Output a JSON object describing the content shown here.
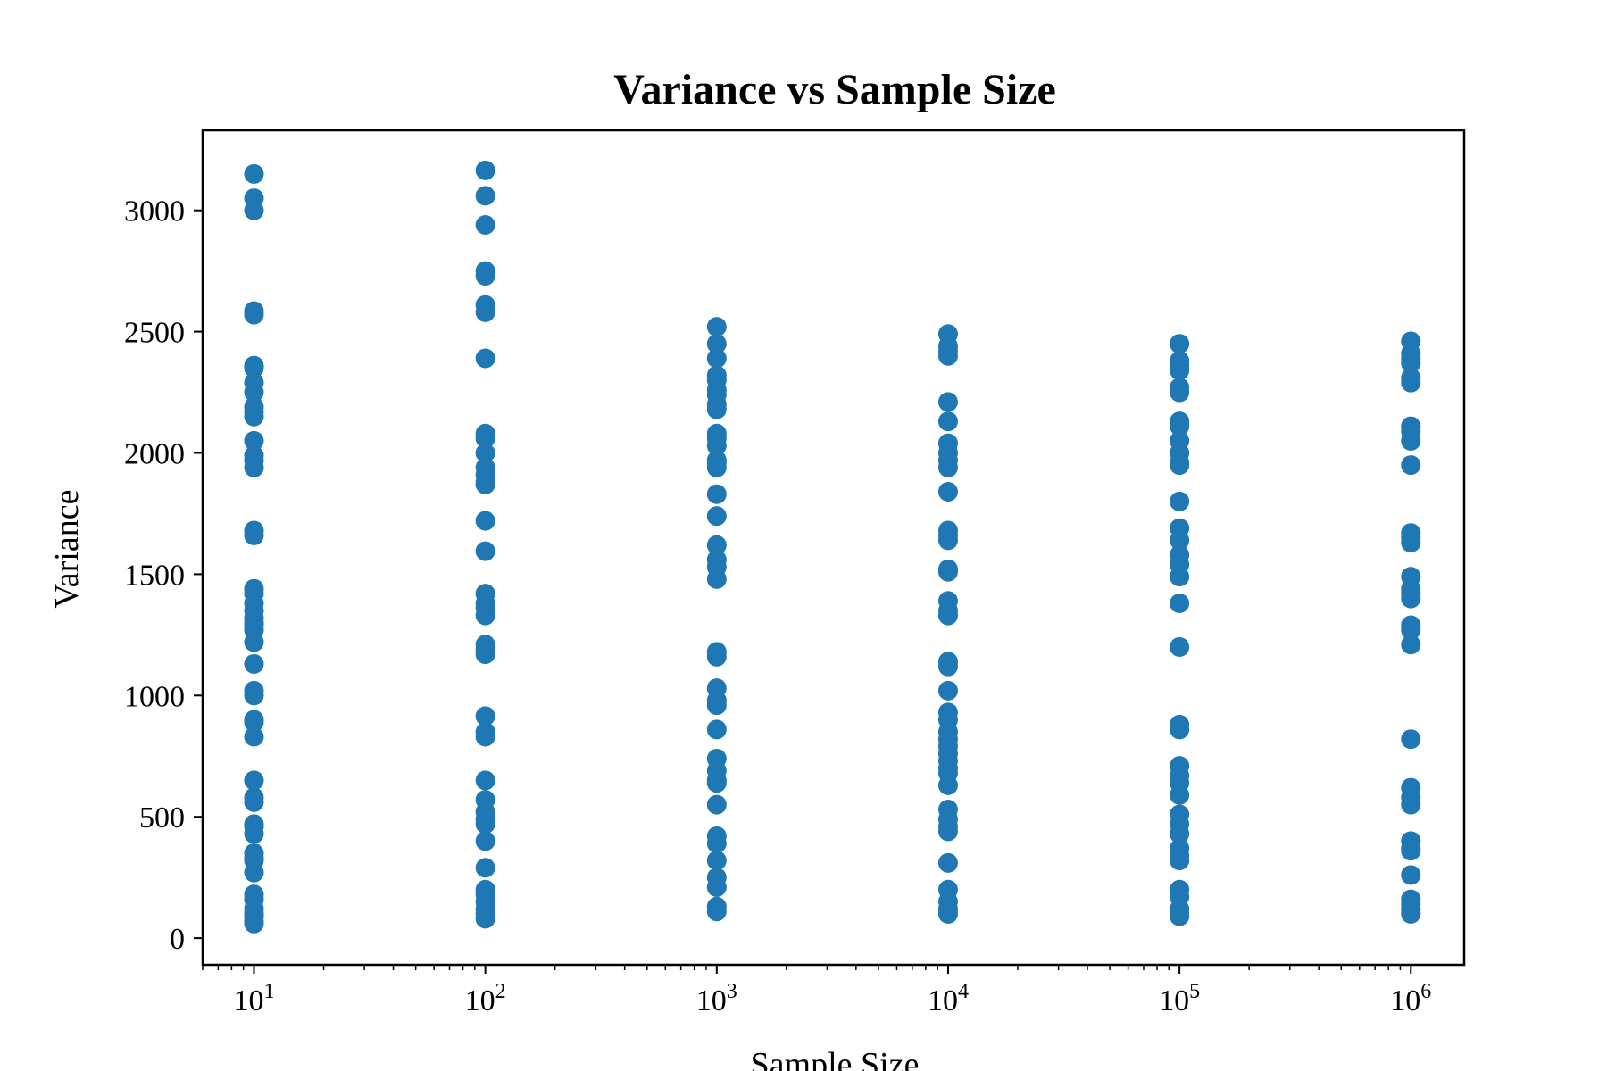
{
  "chart_data": {
    "type": "scatter",
    "title": "Variance vs Sample Size",
    "xlabel": "Sample Size",
    "ylabel": "Variance",
    "x_scale": "log",
    "xlim": [
      6,
      1700000
    ],
    "ylim": [
      -110,
      3330
    ],
    "grid": false,
    "legend": "none",
    "marker_color": "#1f77b4",
    "x_ticks": [
      {
        "value": 10,
        "base": "10",
        "exp": "1"
      },
      {
        "value": 100,
        "base": "10",
        "exp": "2"
      },
      {
        "value": 1000,
        "base": "10",
        "exp": "3"
      },
      {
        "value": 10000,
        "base": "10",
        "exp": "4"
      },
      {
        "value": 100000,
        "base": "10",
        "exp": "5"
      },
      {
        "value": 1000000,
        "base": "10",
        "exp": "6"
      }
    ],
    "y_ticks": [
      0,
      500,
      1000,
      1500,
      2000,
      2500,
      3000
    ],
    "series": [
      {
        "x": 10,
        "values": [
          3150,
          3050,
          3000,
          2585,
          2570,
          2360,
          2350,
          2290,
          2250,
          2190,
          2170,
          2150,
          2050,
          1990,
          1970,
          1940,
          1680,
          1660,
          1440,
          1420,
          1380,
          1350,
          1320,
          1300,
          1290,
          1270,
          1220,
          1130,
          1020,
          1000,
          900,
          890,
          830,
          650,
          580,
          560,
          470,
          460,
          430,
          350,
          330,
          320,
          270,
          180,
          160,
          120,
          100,
          90,
          70,
          60
        ]
      },
      {
        "x": 100,
        "values": [
          3165,
          3060,
          2940,
          2750,
          2730,
          2610,
          2580,
          2390,
          2080,
          2060,
          2000,
          1940,
          1910,
          1880,
          1870,
          1720,
          1595,
          1420,
          1380,
          1360,
          1330,
          1210,
          1190,
          1170,
          915,
          850,
          830,
          650,
          570,
          520,
          490,
          470,
          400,
          290,
          200,
          180,
          150,
          120,
          100,
          80
        ]
      },
      {
        "x": 1000,
        "values": [
          2520,
          2450,
          2390,
          2320,
          2300,
          2260,
          2240,
          2200,
          2180,
          2080,
          2060,
          2030,
          1970,
          1960,
          1940,
          1830,
          1740,
          1620,
          1560,
          1530,
          1480,
          1180,
          1160,
          1030,
          980,
          960,
          860,
          740,
          690,
          650,
          640,
          550,
          420,
          390,
          320,
          250,
          210,
          130,
          110
        ]
      },
      {
        "x": 10000,
        "values": [
          2490,
          2440,
          2420,
          2400,
          2210,
          2130,
          2040,
          2000,
          1970,
          1940,
          1840,
          1680,
          1660,
          1640,
          1520,
          1510,
          1390,
          1350,
          1330,
          1140,
          1120,
          1020,
          930,
          900,
          850,
          820,
          790,
          760,
          730,
          700,
          680,
          630,
          530,
          490,
          460,
          440,
          310,
          200,
          150,
          120,
          100
        ]
      },
      {
        "x": 100000,
        "values": [
          2450,
          2380,
          2360,
          2340,
          2270,
          2250,
          2130,
          2110,
          2050,
          2000,
          1960,
          1950,
          1800,
          1690,
          1640,
          1580,
          1540,
          1490,
          1380,
          1200,
          880,
          860,
          710,
          670,
          640,
          590,
          510,
          470,
          430,
          370,
          340,
          320,
          200,
          170,
          120,
          100,
          90
        ]
      },
      {
        "x": 1000000,
        "values": [
          2460,
          2410,
          2390,
          2370,
          2310,
          2290,
          2110,
          2090,
          2050,
          1950,
          1670,
          1650,
          1630,
          1490,
          1440,
          1420,
          1400,
          1290,
          1270,
          1210,
          820,
          620,
          580,
          550,
          400,
          370,
          360,
          260,
          160,
          140,
          120,
          100
        ]
      }
    ]
  }
}
